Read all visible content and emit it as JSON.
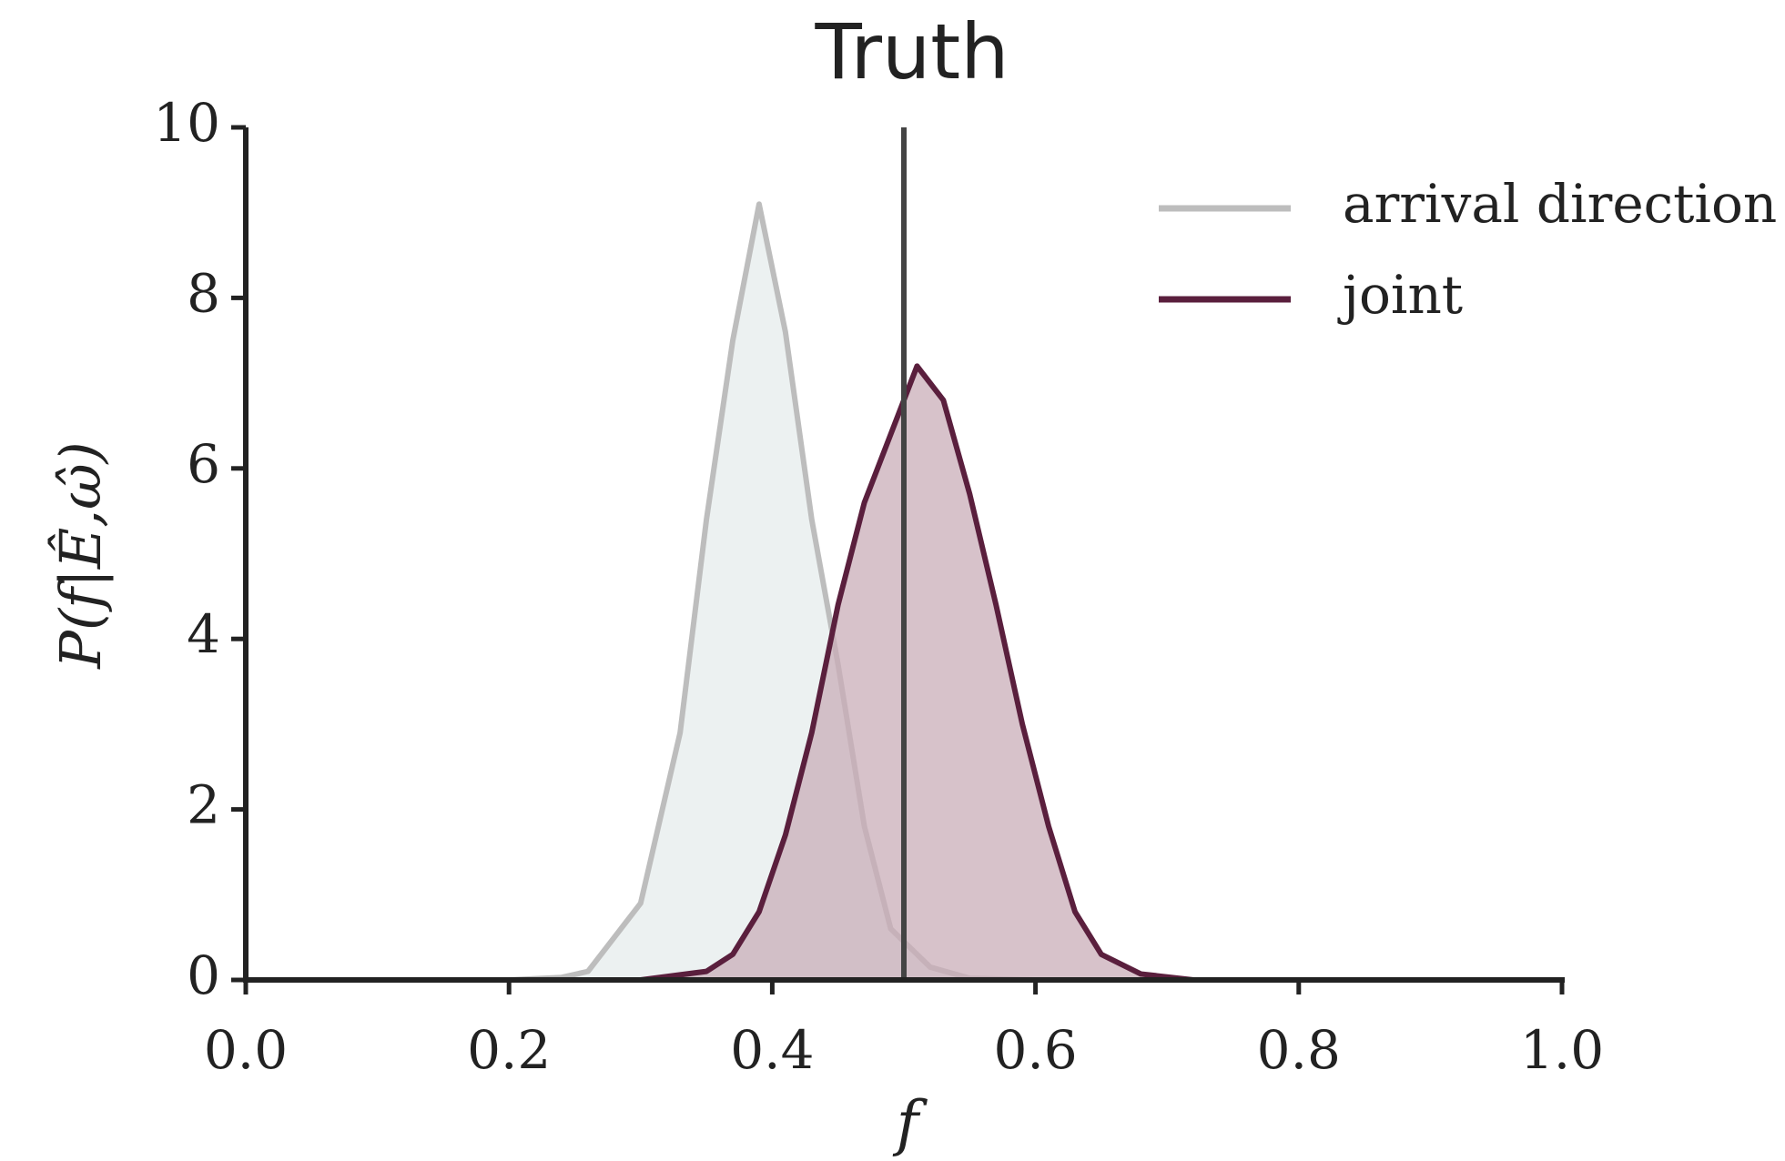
{
  "chart_data": {
    "type": "line",
    "title": "Truth",
    "xlabel": "f",
    "ylabel": "P(f|Ê,ω̂)",
    "xlim": [
      0,
      1
    ],
    "ylim": [
      0,
      10
    ],
    "xticks": [
      {
        "value": 0,
        "label": "0.0"
      },
      {
        "value": 0.2,
        "label": "0.2"
      },
      {
        "value": 0.4,
        "label": "0.4"
      },
      {
        "value": 0.6,
        "label": "0.6"
      },
      {
        "value": 0.8,
        "label": "0.8"
      },
      {
        "value": 1,
        "label": "1.0"
      }
    ],
    "yticks": [
      0,
      2,
      4,
      6,
      8,
      10
    ],
    "truth_line": 0.5,
    "legend": "upper right",
    "series": [
      {
        "name": "arrival direction",
        "color": "#bdbdbd",
        "fill": "#e6ecec",
        "x": [
          0.0,
          0.2,
          0.24,
          0.26,
          0.28,
          0.3,
          0.33,
          0.35,
          0.37,
          0.39,
          0.41,
          0.43,
          0.45,
          0.47,
          0.49,
          0.52,
          0.55,
          0.6,
          1.0
        ],
        "values": [
          0,
          0,
          0.03,
          0.1,
          0.5,
          0.9,
          2.9,
          5.4,
          7.5,
          9.1,
          7.6,
          5.4,
          3.7,
          1.8,
          0.6,
          0.15,
          0.02,
          0,
          0
        ]
      },
      {
        "name": "joint",
        "color": "#5a1f3d",
        "fill": "#c9adb8",
        "x": [
          0.0,
          0.3,
          0.35,
          0.37,
          0.39,
          0.41,
          0.43,
          0.45,
          0.47,
          0.49,
          0.51,
          0.53,
          0.55,
          0.57,
          0.59,
          0.61,
          0.63,
          0.65,
          0.68,
          0.72,
          1.0
        ],
        "values": [
          0,
          0,
          0.1,
          0.3,
          0.8,
          1.7,
          2.9,
          4.4,
          5.6,
          6.4,
          7.2,
          6.8,
          5.7,
          4.4,
          3.0,
          1.8,
          0.8,
          0.3,
          0.07,
          0,
          0
        ]
      }
    ]
  }
}
